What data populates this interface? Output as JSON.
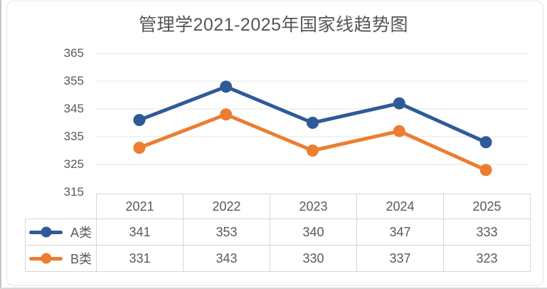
{
  "title": "管理学2021-2025年国家线趋势图",
  "chart_data": {
    "type": "line",
    "title": "管理学2021-2025年国家线趋势图",
    "categories": [
      "2021",
      "2022",
      "2023",
      "2024",
      "2025"
    ],
    "series": [
      {
        "name": "A类",
        "color": "#2e5b97",
        "values": [
          341,
          353,
          340,
          347,
          333
        ]
      },
      {
        "name": "B类",
        "color": "#ed7d31",
        "values": [
          331,
          343,
          330,
          337,
          323
        ]
      }
    ],
    "yticks": [
      365,
      355,
      345,
      335,
      325,
      315
    ],
    "ylim": [
      315,
      365
    ],
    "xlabel": "",
    "ylabel": "",
    "grid": true,
    "grid_color": "#e6e6e6",
    "text_color": "#595959",
    "marker": "circle",
    "legend_position": "data-table-left"
  }
}
